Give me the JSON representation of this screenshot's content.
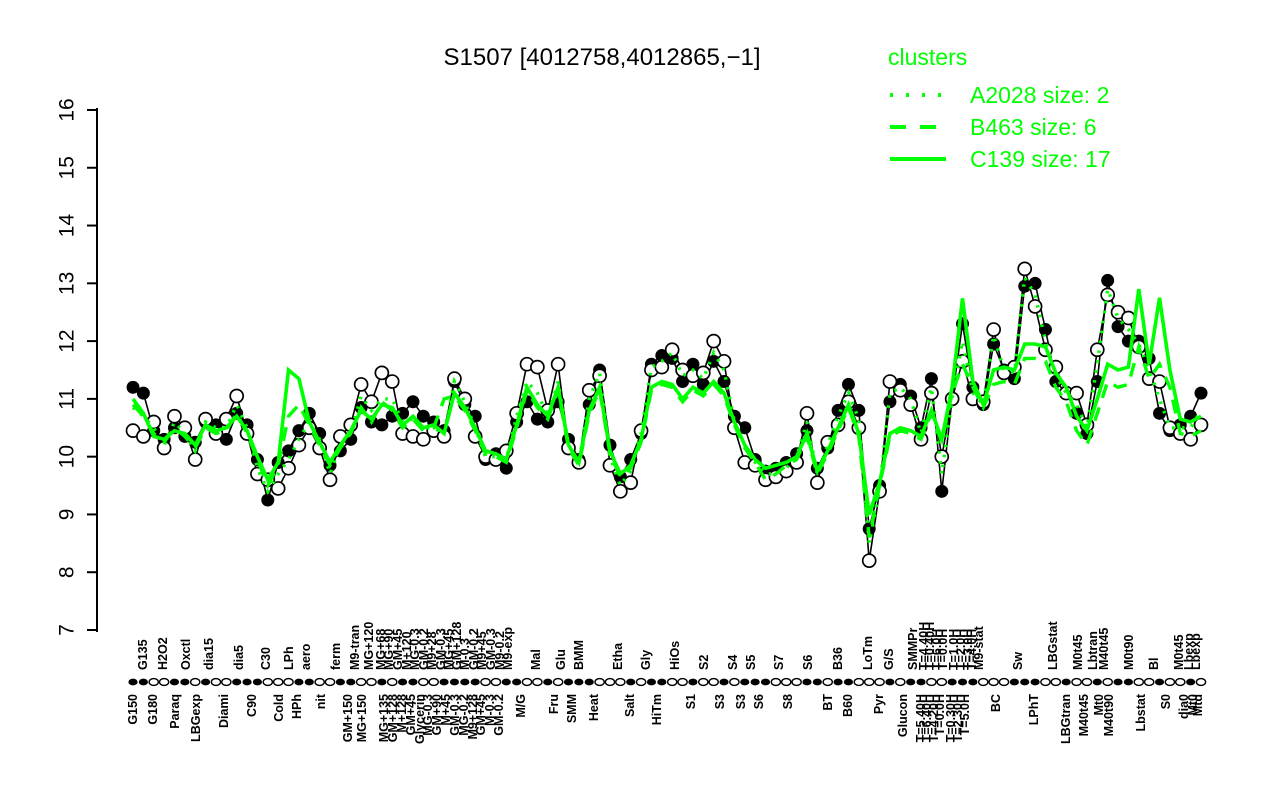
{
  "page": {
    "background": "#ffffff"
  },
  "chart_data": {
    "type": "line",
    "title": "S1507 [4012758,4012865,−1]",
    "xlabel": "",
    "ylabel": "",
    "ylim": [
      7,
      16
    ],
    "yticks": [
      7,
      8,
      9,
      10,
      11,
      12,
      13,
      14,
      15,
      16
    ],
    "grid": false,
    "colors": {
      "cluster_green": "#00ff00",
      "points_black": "#000000",
      "open_fill": "#ffffff"
    },
    "legend": {
      "title": "clusters",
      "position": "top-right",
      "entries": [
        {
          "label": "A2028 size: 2",
          "style": "dotted",
          "color": "#00ff00"
        },
        {
          "label": "B463 size: 6",
          "style": "dashed",
          "color": "#00ff00"
        },
        {
          "label": "C139 size: 17",
          "style": "solid",
          "color": "#00ff00"
        }
      ]
    },
    "n_points": 104,
    "series": [
      {
        "name": "gene-1-filled",
        "kind": "points",
        "marker": "filled",
        "color": "#000000",
        "values": [
          11.2,
          11.1,
          10.45,
          10.3,
          10.5,
          10.35,
          10.25,
          10.6,
          10.55,
          10.3,
          10.75,
          10.55,
          9.95,
          9.25,
          9.9,
          10.1,
          10.45,
          10.75,
          10.4,
          9.85,
          10.1,
          10.3,
          10.85,
          10.6,
          10.55,
          10.7,
          10.75,
          10.95,
          10.7,
          10.6,
          10.45,
          11.3,
          10.9,
          10.7,
          9.95,
          10.05,
          9.8,
          10.6,
          10.95,
          10.65,
          10.6,
          10.95,
          10.3,
          9.95,
          10.9,
          11.5,
          10.2,
          9.65,
          9.95,
          10.4,
          11.6,
          11.75,
          11.7,
          11.3,
          11.6,
          11.25,
          11.65,
          11.3,
          10.7,
          10.5,
          9.95,
          9.75,
          9.8,
          9.9,
          10.05,
          10.45,
          9.8,
          10.15,
          10.8,
          11.25,
          10.8,
          8.75,
          9.5,
          10.95,
          11.25,
          11.05,
          10.5,
          11.35,
          9.4,
          11.0,
          12.3,
          11.2,
          10.9,
          11.95,
          11.5,
          11.35,
          12.95,
          13.0,
          12.2,
          11.3,
          11.1,
          10.75,
          10.4,
          11.3,
          13.05,
          12.25,
          12.0,
          12.0,
          11.7,
          10.75,
          10.45,
          10.55,
          10.7,
          11.1
        ]
      },
      {
        "name": "gene-2-open",
        "kind": "points",
        "marker": "open",
        "color": "#000000",
        "values": [
          10.45,
          10.35,
          10.6,
          10.15,
          10.7,
          10.5,
          9.95,
          10.65,
          10.4,
          10.65,
          11.05,
          10.4,
          9.7,
          9.6,
          9.45,
          9.8,
          10.2,
          10.5,
          10.15,
          9.6,
          10.35,
          10.55,
          11.25,
          10.95,
          11.45,
          11.3,
          10.4,
          10.35,
          10.3,
          10.45,
          10.35,
          11.35,
          11.0,
          10.35,
          10.0,
          9.95,
          10.1,
          10.75,
          11.6,
          11.55,
          10.8,
          11.6,
          10.15,
          9.9,
          11.15,
          11.4,
          9.85,
          9.4,
          9.55,
          10.45,
          11.5,
          11.55,
          11.85,
          11.5,
          11.4,
          11.45,
          12.0,
          11.65,
          10.5,
          9.9,
          9.85,
          9.6,
          9.65,
          9.75,
          9.9,
          10.75,
          9.55,
          10.25,
          10.55,
          10.95,
          10.5,
          8.2,
          9.4,
          11.3,
          11.15,
          10.9,
          10.3,
          11.1,
          10.0,
          11.0,
          11.65,
          11.0,
          10.95,
          12.2,
          11.45,
          11.55,
          13.25,
          12.6,
          11.85,
          11.55,
          11.1,
          11.1,
          10.55,
          11.85,
          12.8,
          12.5,
          12.4,
          11.9,
          11.35,
          11.3,
          10.5,
          10.4,
          10.3,
          10.55
        ]
      },
      {
        "name": "A2028",
        "kind": "cluster",
        "style": "dotted",
        "color": "#00ff00",
        "values": [
          10.85,
          10.7,
          10.5,
          10.2,
          10.6,
          10.4,
          10.1,
          10.6,
          10.5,
          10.5,
          10.9,
          10.5,
          9.8,
          9.4,
          9.7,
          9.95,
          10.3,
          10.6,
          10.3,
          9.7,
          10.2,
          10.4,
          11.05,
          10.8,
          11.0,
          11.0,
          10.6,
          10.65,
          10.5,
          10.5,
          10.4,
          11.3,
          10.95,
          10.5,
          10.0,
          10.0,
          9.95,
          10.7,
          11.3,
          11.1,
          10.7,
          11.3,
          10.2,
          9.9,
          11.0,
          11.45,
          10.0,
          9.5,
          9.75,
          10.4,
          11.55,
          11.65,
          11.8,
          11.4,
          11.5,
          11.35,
          11.8,
          11.5,
          10.6,
          10.2,
          9.9,
          9.7,
          9.7,
          9.8,
          10.0,
          10.6,
          9.7,
          10.2,
          10.7,
          11.1,
          10.65,
          8.5,
          9.45,
          11.1,
          11.2,
          11.0,
          10.4,
          11.2,
          9.7,
          11.0,
          12.0,
          11.1,
          10.9,
          12.1,
          11.5,
          11.45,
          13.1,
          12.8,
          12.0,
          11.4,
          11.1,
          10.9,
          10.5,
          11.6,
          12.9,
          12.4,
          12.2,
          11.95,
          11.5,
          11.0,
          10.5,
          10.5,
          10.5,
          10.8
        ]
      },
      {
        "name": "B463",
        "kind": "cluster",
        "style": "dashed",
        "color": "#00ff00",
        "values": [
          10.9,
          10.7,
          10.4,
          10.25,
          10.5,
          10.35,
          10.15,
          10.5,
          10.4,
          10.45,
          10.75,
          10.4,
          9.95,
          9.5,
          9.85,
          10.7,
          10.9,
          10.55,
          10.2,
          9.85,
          10.15,
          10.4,
          10.85,
          10.6,
          10.95,
          10.8,
          10.5,
          10.65,
          10.45,
          10.5,
          11.0,
          11.05,
          10.8,
          10.45,
          10.05,
          10.0,
          9.9,
          10.5,
          11.15,
          10.85,
          10.65,
          11.15,
          10.15,
          9.85,
          10.75,
          11.15,
          10.05,
          9.65,
          9.8,
          10.25,
          11.15,
          11.25,
          11.2,
          10.95,
          11.15,
          11.05,
          11.25,
          11.05,
          10.55,
          10.15,
          9.9,
          9.6,
          9.7,
          9.85,
          9.95,
          10.35,
          9.7,
          10.05,
          10.45,
          10.85,
          10.35,
          8.6,
          9.5,
          10.35,
          10.45,
          10.4,
          10.3,
          10.75,
          10.25,
          11.1,
          11.6,
          11.2,
          10.85,
          11.25,
          11.3,
          11.25,
          11.7,
          11.7,
          11.65,
          11.2,
          10.95,
          10.45,
          10.2,
          10.75,
          11.3,
          11.2,
          11.25,
          11.9,
          11.35,
          11.6,
          11.2,
          10.4,
          10.35,
          10.45
        ]
      },
      {
        "name": "C139",
        "kind": "cluster",
        "style": "solid",
        "color": "#00ff00",
        "values": [
          11.0,
          10.75,
          10.35,
          10.3,
          10.45,
          10.4,
          10.2,
          10.55,
          10.45,
          10.5,
          10.7,
          10.45,
          10.0,
          9.6,
          9.9,
          11.5,
          11.35,
          10.6,
          10.25,
          9.9,
          10.2,
          10.45,
          10.8,
          10.65,
          10.9,
          10.85,
          10.55,
          10.7,
          10.5,
          10.55,
          10.4,
          11.1,
          10.85,
          10.5,
          10.1,
          10.05,
          9.95,
          10.55,
          11.2,
          10.9,
          10.7,
          11.2,
          10.2,
          9.9,
          10.8,
          11.2,
          10.1,
          9.7,
          9.85,
          10.3,
          11.2,
          11.3,
          11.25,
          11.0,
          11.2,
          11.1,
          11.3,
          11.1,
          10.6,
          10.2,
          9.95,
          9.8,
          9.85,
          9.9,
          10.0,
          10.4,
          9.75,
          10.1,
          10.5,
          10.9,
          10.4,
          9.0,
          9.55,
          10.4,
          10.5,
          10.45,
          10.35,
          10.8,
          10.3,
          11.2,
          12.74,
          11.3,
          10.9,
          11.5,
          11.55,
          11.5,
          11.95,
          11.95,
          11.9,
          11.45,
          11.2,
          10.7,
          10.45,
          11.0,
          11.6,
          11.5,
          11.55,
          12.9,
          11.6,
          12.75,
          11.5,
          10.65,
          10.6,
          10.7
        ]
      }
    ],
    "rug_pattern": "ffooffofoofffoooffooffoofoffooffffooffoofofffooofoffoofoofofffoooffoffooofoffoofffooofffoofoofoffoofoofo",
    "x_labels": [
      [
        137,
        "b",
        "G150"
      ],
      [
        147,
        "t",
        "G135"
      ],
      [
        157,
        "b",
        "G180"
      ],
      [
        167,
        "t",
        "H2O2"
      ],
      [
        179,
        "b",
        "Paraq"
      ],
      [
        190,
        "t",
        "Oxctl"
      ],
      [
        200,
        "b",
        "LBGexp"
      ],
      [
        213,
        "t",
        "dia15"
      ],
      [
        228,
        "b",
        "Diami"
      ],
      [
        243,
        "t",
        "dia5"
      ],
      [
        256,
        "b",
        "C90"
      ],
      [
        270,
        "t",
        "C30"
      ],
      [
        283,
        "b",
        "Cold"
      ],
      [
        293,
        "t",
        "LPh"
      ],
      [
        301,
        "b",
        "HPh"
      ],
      [
        310,
        "t",
        "aero"
      ],
      [
        325,
        "b",
        "nit"
      ],
      [
        340,
        "t",
        "ferm"
      ],
      [
        352,
        "b",
        "GM+150"
      ],
      [
        359,
        "t",
        "M9-tran"
      ],
      [
        366,
        "b",
        "MG+150"
      ],
      [
        373,
        "t",
        "MG+120"
      ],
      [
        385,
        "t",
        "MG+68"
      ],
      [
        388,
        "b",
        "MG+135"
      ],
      [
        393,
        "t",
        "MG+90"
      ],
      [
        397,
        "b",
        "GM+128"
      ],
      [
        402,
        "t",
        "GM+45"
      ],
      [
        406,
        "b",
        "M+128"
      ],
      [
        411,
        "t",
        "M+120"
      ],
      [
        415,
        "b",
        "GM+45"
      ],
      [
        419,
        "t",
        "MG-0.3"
      ],
      [
        424,
        "b",
        "Glycerin"
      ],
      [
        428,
        "t",
        "GM-0.2"
      ],
      [
        432,
        "b",
        "MG-0.3"
      ],
      [
        436,
        "t",
        "M9+28"
      ],
      [
        441,
        "b",
        "GM+90"
      ],
      [
        445,
        "t",
        "GM-0.3"
      ],
      [
        450,
        "b",
        "M+45"
      ],
      [
        453,
        "t",
        "MG+45"
      ],
      [
        459,
        "b",
        "GM-0.3"
      ],
      [
        461,
        "t",
        "GM+128"
      ],
      [
        468,
        "b",
        "MG-0.2"
      ],
      [
        469,
        "t",
        "M-0.3"
      ],
      [
        477,
        "b",
        "M9+128"
      ],
      [
        478,
        "t",
        "GM-0.2"
      ],
      [
        485,
        "b",
        "GM+45"
      ],
      [
        486,
        "t",
        "M9+45"
      ],
      [
        494,
        "b",
        "M-0.3"
      ],
      [
        495,
        "t",
        "GM-0.3"
      ],
      [
        503,
        "b",
        "GM-0.2"
      ],
      [
        504,
        "t",
        "M9-0.2"
      ],
      [
        512,
        "t",
        "M9-exp"
      ],
      [
        525,
        "b",
        "M/G"
      ],
      [
        540,
        "t",
        "Mal"
      ],
      [
        558,
        "b",
        "Fru"
      ],
      [
        565,
        "t",
        "Glu"
      ],
      [
        576,
        "b",
        "SMM"
      ],
      [
        583,
        "t",
        "BMM"
      ],
      [
        598,
        "b",
        "Heat"
      ],
      [
        622,
        "t",
        "Etha"
      ],
      [
        634,
        "b",
        "Salt"
      ],
      [
        650,
        "t",
        "Gly"
      ],
      [
        661,
        "b",
        "HiTm"
      ],
      [
        679,
        "t",
        "HiOs"
      ],
      [
        695,
        "b",
        "S1"
      ],
      [
        708,
        "t",
        "S2"
      ],
      [
        724,
        "b",
        "S3"
      ],
      [
        737,
        "t",
        "S4"
      ],
      [
        745,
        "b",
        "S3"
      ],
      [
        755,
        "t",
        "S5"
      ],
      [
        763,
        "b",
        "S6"
      ],
      [
        783,
        "t",
        "S7"
      ],
      [
        792,
        "b",
        "S8"
      ],
      [
        812,
        "t",
        "S6"
      ],
      [
        832,
        "b",
        "BT"
      ],
      [
        842,
        "t",
        "B36"
      ],
      [
        852,
        "b",
        "B60"
      ],
      [
        872,
        "t",
        "LoTm"
      ],
      [
        883,
        "b",
        "Pyr"
      ],
      [
        893,
        "t",
        "G/S"
      ],
      [
        907,
        "b",
        "Glucon"
      ],
      [
        917,
        "t",
        "SMMPr"
      ],
      [
        925,
        "b",
        "T=5.40H"
      ],
      [
        928,
        "t",
        "T=4.40H"
      ],
      [
        931,
        "b",
        "T=6.40H"
      ],
      [
        934,
        "t",
        "T=0.40H"
      ],
      [
        938,
        "b",
        "T=4.20H"
      ],
      [
        941,
        "t",
        "T=6.0H"
      ],
      [
        944,
        "b",
        "T=0.0H"
      ],
      [
        947,
        "t",
        "T=0.0H"
      ],
      [
        955,
        "b",
        "T=0.30H"
      ],
      [
        958,
        "t",
        "T=1.0H"
      ],
      [
        962,
        "b",
        "T=2.30H"
      ],
      [
        965,
        "t",
        "T=2.0H"
      ],
      [
        969,
        "b",
        "T=5.0H"
      ],
      [
        972,
        "t",
        "T=3.0H"
      ],
      [
        976,
        "t",
        "T=4.0H"
      ],
      [
        983,
        "t",
        "M9-stat"
      ],
      [
        1000,
        "b",
        "BC"
      ],
      [
        1022,
        "t",
        "Sw"
      ],
      [
        1038,
        "b",
        "LPhT"
      ],
      [
        1057,
        "t",
        "LBGstat"
      ],
      [
        1070,
        "b",
        "LBGtran"
      ],
      [
        1082,
        "t",
        "M0t45"
      ],
      [
        1088,
        "b",
        "M40t45"
      ],
      [
        1097,
        "t",
        "Lbtran"
      ],
      [
        1103,
        "b",
        "Mt0"
      ],
      [
        1108,
        "t",
        "M40t45"
      ],
      [
        1113,
        "b",
        "M40t90"
      ],
      [
        1133,
        "t",
        "M0t90"
      ],
      [
        1145,
        "b",
        "Lbstat"
      ],
      [
        1158,
        "t",
        "Bl"
      ],
      [
        1170,
        "b",
        "S0"
      ],
      [
        1183,
        "t",
        "M0t45"
      ],
      [
        1188,
        "b",
        "dia0"
      ],
      [
        1193,
        "t",
        "Lbexp"
      ],
      [
        1197,
        "b",
        "Mt0"
      ],
      [
        1200,
        "t",
        "Lbexp"
      ],
      [
        1202,
        "b",
        "Mtd"
      ]
    ]
  }
}
